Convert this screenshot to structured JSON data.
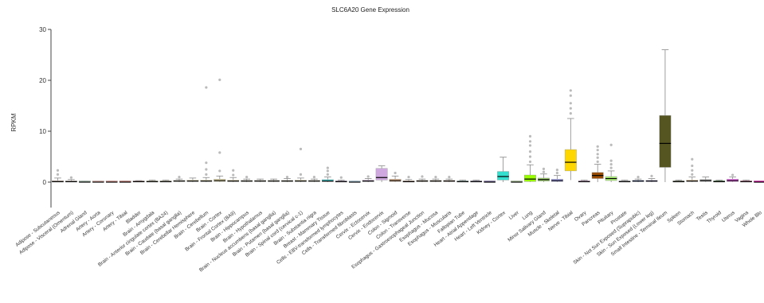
{
  "chart_data": {
    "type": "box",
    "title": "SLC6A20 Gene Expression",
    "ylabel": "RPKM",
    "xlabel": "",
    "ylim": [
      -5,
      30
    ],
    "yticks": [
      0,
      10,
      20,
      30
    ],
    "grid": false,
    "legend": "none",
    "categories": [
      "Adipose - Subcutaneous",
      "Adipose - Visceral (Omentum)",
      "Adrenal Gland",
      "Artery - Aorta",
      "Artery - Coronary",
      "Artery - Tibial",
      "Bladder",
      "Brain - Amygdala",
      "Brain - Anterior cingulate cortex (BA24)",
      "Brain - Caudate (basal ganglia)",
      "Brain - Cerebellar Hemisphere",
      "Brain - Cerebellum",
      "Brain - Cortex",
      "Brain - Frontal Cortex (BA9)",
      "Brain - Hippocampus",
      "Brain - Hypothalamus",
      "Brain - Nucleus accumbens (basal ganglia)",
      "Brain - Putamen (basal ganglia)",
      "Brain - Spinal cord (cervical c-1)",
      "Brain - Substantia nigra",
      "Breast - Mammary Tissue",
      "Cells - EBV-transformed lymphocytes",
      "Cells - Transformed fibroblasts",
      "Cervix - Ectocervix",
      "Cervix - Endocervix",
      "Colon - Sigmoid",
      "Colon - Transverse",
      "Esophagus - Gastroesophageal Junction",
      "Esophagus - Mucosa",
      "Esophagus - Muscularis",
      "Fallopian Tube",
      "Heart - Atrial Appendage",
      "Heart - Left Ventricle",
      "Kidney - Cortex",
      "Liver",
      "Lung",
      "Minor Salivary Gland",
      "Muscle - Skeletal",
      "Nerve - Tibial",
      "Ovary",
      "Pancreas",
      "Pituitary",
      "Prostate",
      "Skin - Not Sun Exposed (Suprapubic)",
      "Skin - Sun Exposed (Lower leg)",
      "Small Intestine - Terminal Ileum",
      "Spleen",
      "Stomach",
      "Testis",
      "Thyroid",
      "Uterus",
      "Vagina",
      "Whole Blo"
    ],
    "boxes": [
      {
        "q1": 0,
        "median": 0.1,
        "q3": 0.3,
        "wlo": 0,
        "whi": 0.8,
        "color": "#e8c9b8",
        "outliers": [
          1.5,
          2.3
        ]
      },
      {
        "q1": 0,
        "median": 0.1,
        "q3": 0.2,
        "wlo": 0,
        "whi": 0.5,
        "color": "#f0d4c0",
        "outliers": [
          0.9
        ]
      },
      {
        "q1": 0,
        "median": 0,
        "q3": 0.1,
        "wlo": 0,
        "whi": 0.2,
        "color": "#a9c9b3",
        "outliers": []
      },
      {
        "q1": 0,
        "median": 0,
        "q3": 0.1,
        "wlo": 0,
        "whi": 0.2,
        "color": "#f3b7b0",
        "outliers": []
      },
      {
        "q1": 0,
        "median": 0,
        "q3": 0.1,
        "wlo": 0,
        "whi": 0.2,
        "color": "#f19b93",
        "outliers": []
      },
      {
        "q1": 0,
        "median": 0,
        "q3": 0.1,
        "wlo": 0,
        "whi": 0.2,
        "color": "#e2817a",
        "outliers": []
      },
      {
        "q1": 0,
        "median": 0.1,
        "q3": 0.2,
        "wlo": 0,
        "whi": 0.3,
        "color": "#e8b3a8",
        "outliers": []
      },
      {
        "q1": 0,
        "median": 0.1,
        "q3": 0.2,
        "wlo": 0,
        "whi": 0.4,
        "color": "#f3e8b0",
        "outliers": []
      },
      {
        "q1": 0,
        "median": 0.1,
        "q3": 0.2,
        "wlo": 0,
        "whi": 0.4,
        "color": "#f3e8b0",
        "outliers": []
      },
      {
        "q1": 0.1,
        "median": 0.2,
        "q3": 0.3,
        "wlo": 0,
        "whi": 0.6,
        "color": "#f3e8b0",
        "outliers": [
          1.0
        ]
      },
      {
        "q1": 0.1,
        "median": 0.2,
        "q3": 0.4,
        "wlo": 0,
        "whi": 0.8,
        "color": "#f3e8b0",
        "outliers": []
      },
      {
        "q1": 0.1,
        "median": 0.2,
        "q3": 0.4,
        "wlo": 0,
        "whi": 0.9,
        "color": "#f3e8b0",
        "outliers": [
          1.5,
          2.5,
          3.8,
          18.6
        ]
      },
      {
        "q1": 0.1,
        "median": 0.3,
        "q3": 0.6,
        "wlo": 0,
        "whi": 1.2,
        "color": "#f3e8b0",
        "outliers": [
          2.2,
          5.8,
          20.1
        ]
      },
      {
        "q1": 0.1,
        "median": 0.2,
        "q3": 0.4,
        "wlo": 0,
        "whi": 0.9,
        "color": "#f3e8b0",
        "outliers": [
          1.4,
          2.3
        ]
      },
      {
        "q1": 0.1,
        "median": 0.2,
        "q3": 0.3,
        "wlo": 0,
        "whi": 0.6,
        "color": "#f3e8b0",
        "outliers": [
          1.0
        ]
      },
      {
        "q1": 0.1,
        "median": 0.2,
        "q3": 0.3,
        "wlo": 0,
        "whi": 0.6,
        "color": "#f3e8b0",
        "outliers": []
      },
      {
        "q1": 0.1,
        "median": 0.2,
        "q3": 0.3,
        "wlo": 0,
        "whi": 0.6,
        "color": "#f3e8b0",
        "outliers": []
      },
      {
        "q1": 0.1,
        "median": 0.2,
        "q3": 0.3,
        "wlo": 0,
        "whi": 0.7,
        "color": "#f3e8b0",
        "outliers": [
          1.0
        ]
      },
      {
        "q1": 0.1,
        "median": 0.2,
        "q3": 0.4,
        "wlo": 0,
        "whi": 0.8,
        "color": "#f3e8b0",
        "outliers": [
          1.5,
          6.5
        ]
      },
      {
        "q1": 0.1,
        "median": 0.2,
        "q3": 0.3,
        "wlo": 0,
        "whi": 0.6,
        "color": "#f3e8b0",
        "outliers": [
          1.0
        ]
      },
      {
        "q1": 0.1,
        "median": 0.2,
        "q3": 0.5,
        "wlo": 0,
        "whi": 1.0,
        "color": "#48c9c9",
        "outliers": [
          1.5,
          2.2,
          2.8
        ]
      },
      {
        "q1": 0,
        "median": 0.1,
        "q3": 0.2,
        "wlo": 0,
        "whi": 0.4,
        "color": "#c9a9d9",
        "outliers": [
          0.9
        ]
      },
      {
        "q1": 0,
        "median": 0,
        "q3": 0.1,
        "wlo": 0,
        "whi": 0.2,
        "color": "#b3d9f0",
        "outliers": []
      },
      {
        "q1": 0.1,
        "median": 0.2,
        "q3": 0.4,
        "wlo": 0,
        "whi": 0.7,
        "color": "#d9b3e0",
        "outliers": [
          1.1
        ]
      },
      {
        "q1": 0.4,
        "median": 0.9,
        "q3": 2.7,
        "wlo": 0,
        "whi": 3.2,
        "color": "#d0a8e0",
        "outliers": []
      },
      {
        "q1": 0.1,
        "median": 0.3,
        "q3": 0.6,
        "wlo": 0,
        "whi": 1.2,
        "color": "#f3c49a",
        "outliers": [
          1.8
        ]
      },
      {
        "q1": 0,
        "median": 0.1,
        "q3": 0.2,
        "wlo": 0,
        "whi": 0.5,
        "color": "#e3a777",
        "outliers": [
          1.0
        ]
      },
      {
        "q1": 0.1,
        "median": 0.2,
        "q3": 0.3,
        "wlo": 0,
        "whi": 0.6,
        "color": "#c9a06b",
        "outliers": [
          1.1
        ]
      },
      {
        "q1": 0.1,
        "median": 0.2,
        "q3": 0.3,
        "wlo": 0,
        "whi": 0.6,
        "color": "#c99a6b",
        "outliers": [
          1.0
        ]
      },
      {
        "q1": 0.1,
        "median": 0.2,
        "q3": 0.3,
        "wlo": 0,
        "whi": 0.6,
        "color": "#c98e5b",
        "outliers": [
          1.0
        ]
      },
      {
        "q1": 0,
        "median": 0.1,
        "q3": 0.2,
        "wlo": 0,
        "whi": 0.4,
        "color": "#a9e0d9",
        "outliers": []
      },
      {
        "q1": 0,
        "median": 0.1,
        "q3": 0.2,
        "wlo": 0,
        "whi": 0.4,
        "color": "#a08fc9",
        "outliers": []
      },
      {
        "q1": 0,
        "median": 0,
        "q3": 0.1,
        "wlo": 0,
        "whi": 0.2,
        "color": "#7f6fb0",
        "outliers": []
      },
      {
        "q1": 0.4,
        "median": 1.1,
        "q3": 2.1,
        "wlo": 0,
        "whi": 4.9,
        "color": "#33e0d0",
        "outliers": []
      },
      {
        "q1": 0,
        "median": 0,
        "q3": 0.1,
        "wlo": 0,
        "whi": 0.2,
        "color": "#b9d9a0",
        "outliers": []
      },
      {
        "q1": 0.1,
        "median": 0.6,
        "q3": 1.4,
        "wlo": 0,
        "whi": 3.4,
        "color": "#99ff00",
        "outliers": [
          4.0,
          5.0,
          6.0,
          7.2,
          8.0,
          9.0
        ]
      },
      {
        "q1": 0.2,
        "median": 0.5,
        "q3": 0.8,
        "wlo": 0,
        "whi": 1.6,
        "color": "#99cc66",
        "outliers": [
          2.0,
          2.6
        ]
      },
      {
        "q1": 0.1,
        "median": 0.3,
        "q3": 0.6,
        "wlo": 0,
        "whi": 1.3,
        "color": "#aaaaff",
        "outliers": [
          1.8,
          2.4
        ]
      },
      {
        "q1": 2.2,
        "median": 3.9,
        "q3": 6.4,
        "wlo": 0.4,
        "whi": 12.5,
        "color": "#ffd700",
        "outliers": [
          13.5,
          14.5,
          15.5,
          17.0,
          18.0
        ]
      },
      {
        "q1": 0,
        "median": 0.1,
        "q3": 0.2,
        "wlo": 0,
        "whi": 0.4,
        "color": "#ffaaff",
        "outliers": []
      },
      {
        "q1": 0.7,
        "median": 1.3,
        "q3": 1.9,
        "wlo": 0,
        "whi": 3.5,
        "color": "#994c00",
        "outliers": [
          4.0,
          4.8,
          5.5,
          6.3,
          7.0
        ]
      },
      {
        "q1": 0.3,
        "median": 0.7,
        "q3": 1.1,
        "wlo": 0,
        "whi": 2.2,
        "color": "#aaee77",
        "outliers": [
          2.8,
          3.5,
          4.2,
          7.3
        ]
      },
      {
        "q1": 0,
        "median": 0.1,
        "q3": 0.2,
        "wlo": 0,
        "whi": 0.4,
        "color": "#d9d9d9",
        "outliers": []
      },
      {
        "q1": 0.1,
        "median": 0.2,
        "q3": 0.3,
        "wlo": 0,
        "whi": 0.6,
        "color": "#3355ff",
        "outliers": [
          1.0
        ]
      },
      {
        "q1": 0.1,
        "median": 0.2,
        "q3": 0.3,
        "wlo": 0,
        "whi": 0.7,
        "color": "#7777ff",
        "outliers": [
          1.2
        ]
      },
      {
        "q1": 2.9,
        "median": 7.6,
        "q3": 13.1,
        "wlo": 0,
        "whi": 26.0,
        "color": "#555522",
        "outliers": []
      },
      {
        "q1": 0,
        "median": 0.1,
        "q3": 0.2,
        "wlo": 0,
        "whi": 0.4,
        "color": "#778855",
        "outliers": []
      },
      {
        "q1": 0.1,
        "median": 0.2,
        "q3": 0.4,
        "wlo": 0,
        "whi": 1.0,
        "color": "#ffd9a0",
        "outliers": [
          1.5,
          2.3,
          3.2,
          4.5
        ]
      },
      {
        "q1": 0.1,
        "median": 0.3,
        "q3": 0.5,
        "wlo": 0,
        "whi": 1.0,
        "color": "#aaaaaa",
        "outliers": []
      },
      {
        "q1": 0,
        "median": 0.1,
        "q3": 0.2,
        "wlo": 0,
        "whi": 0.4,
        "color": "#006600",
        "outliers": []
      },
      {
        "q1": 0.1,
        "median": 0.3,
        "q3": 0.6,
        "wlo": 0,
        "whi": 1.0,
        "color": "#ff66ff",
        "outliers": [
          1.4
        ]
      },
      {
        "q1": 0,
        "median": 0.1,
        "q3": 0.2,
        "wlo": 0,
        "whi": 0.4,
        "color": "#ff5599",
        "outliers": []
      },
      {
        "q1": 0,
        "median": 0,
        "q3": 0.1,
        "wlo": 0,
        "whi": 0.2,
        "color": "#ff00bb",
        "outliers": []
      }
    ]
  }
}
